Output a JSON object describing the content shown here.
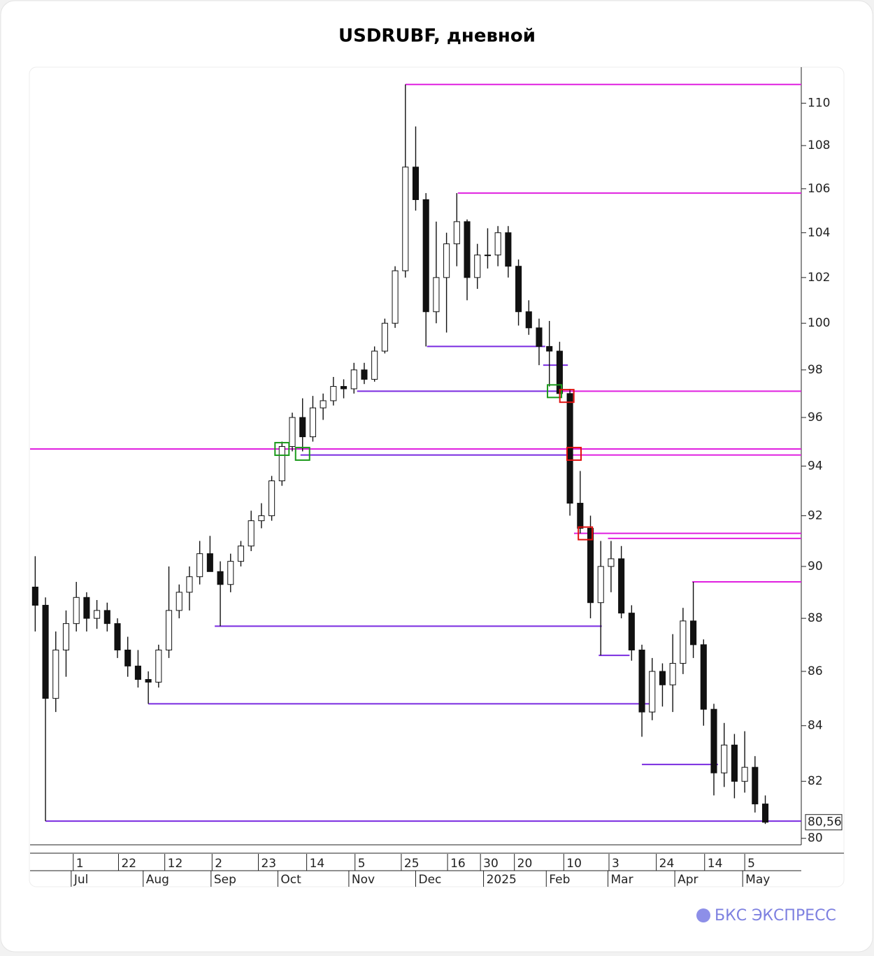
{
  "chart_data": {
    "type": "candlestick",
    "title": "USDRUBF, дневной",
    "log_scale": true,
    "open": [
      89.2,
      88.5,
      85.0,
      86.8,
      87.8,
      88.8,
      88.0,
      88.3,
      87.8,
      86.8,
      86.2,
      85.7,
      85.6,
      86.8,
      88.3,
      89.0,
      89.6,
      90.5,
      89.8,
      89.3,
      90.2,
      90.8,
      91.8,
      92.0,
      93.4,
      94.8,
      96.0,
      95.2,
      96.4,
      96.7,
      97.3,
      97.2,
      98.0,
      97.6,
      98.8,
      100.0,
      102.3,
      107.0,
      105.5,
      100.5,
      102.0,
      103.5,
      104.5,
      102.0,
      103.0,
      103.0,
      104.0,
      102.5,
      100.5,
      99.8,
      99.0,
      98.8,
      97.0,
      92.5,
      91.5,
      88.6,
      90.0,
      90.3,
      88.2,
      86.8,
      84.5,
      86.0,
      85.5,
      86.3,
      87.9,
      87.0,
      84.6,
      82.3,
      83.3,
      82.0,
      82.5,
      81.2
    ],
    "high": [
      90.4,
      88.8,
      87.5,
      88.3,
      89.4,
      89.0,
      88.7,
      88.6,
      88.0,
      87.3,
      86.8,
      86.0,
      87.0,
      90.0,
      89.3,
      90.0,
      91.0,
      91.2,
      90.2,
      90.5,
      91.0,
      92.2,
      92.5,
      93.6,
      95.0,
      96.2,
      96.8,
      96.9,
      97.0,
      97.7,
      97.6,
      98.3,
      98.3,
      99.0,
      100.2,
      102.5,
      110.9,
      108.9,
      105.8,
      104.5,
      104.0,
      105.8,
      104.6,
      103.5,
      104.2,
      104.3,
      104.3,
      102.8,
      101.0,
      100.2,
      100.1,
      99.2,
      97.2,
      93.8,
      92.0,
      91.0,
      91.0,
      90.8,
      88.5,
      87.0,
      86.5,
      86.3,
      87.4,
      88.4,
      89.4,
      87.2,
      84.8,
      84.1,
      83.7,
      83.8,
      82.9,
      81.5
    ],
    "low": [
      87.5,
      80.6,
      84.5,
      85.8,
      87.5,
      87.5,
      87.6,
      87.5,
      86.5,
      85.8,
      85.4,
      84.8,
      85.4,
      86.5,
      88.0,
      88.3,
      89.3,
      89.8,
      87.7,
      89.0,
      90.0,
      90.6,
      91.5,
      91.8,
      93.2,
      94.6,
      94.6,
      95.0,
      95.9,
      96.5,
      96.8,
      97.0,
      97.4,
      97.5,
      98.7,
      99.8,
      102.0,
      105.0,
      99.0,
      100.0,
      99.6,
      102.5,
      101.0,
      101.5,
      102.4,
      102.5,
      102.0,
      99.9,
      99.5,
      98.2,
      97.3,
      96.8,
      92.0,
      91.3,
      88.0,
      86.6,
      89.0,
      88.0,
      86.4,
      83.6,
      84.2,
      84.7,
      84.5,
      85.9,
      86.5,
      84.0,
      81.5,
      81.8,
      81.4,
      81.6,
      80.9,
      80.5
    ],
    "close": [
      88.5,
      85.0,
      86.8,
      87.8,
      88.8,
      88.0,
      88.3,
      87.8,
      86.8,
      86.2,
      85.7,
      85.6,
      86.8,
      88.3,
      89.0,
      89.6,
      90.5,
      89.8,
      89.3,
      90.2,
      90.8,
      91.8,
      92.0,
      93.4,
      94.8,
      96.0,
      95.2,
      96.4,
      96.7,
      97.3,
      97.2,
      98.0,
      97.6,
      98.8,
      100.0,
      102.3,
      107.0,
      105.5,
      100.5,
      102.0,
      103.5,
      104.5,
      102.0,
      103.0,
      103.0,
      104.0,
      102.5,
      100.5,
      99.8,
      99.0,
      98.8,
      97.0,
      92.5,
      91.5,
      88.6,
      90.0,
      90.3,
      88.2,
      86.8,
      84.5,
      86.0,
      85.5,
      86.3,
      87.9,
      87.0,
      84.6,
      82.3,
      83.3,
      82.0,
      82.5,
      81.2,
      80.56
    ],
    "xlim": [
      0,
      75
    ],
    "ylim": [
      79.8,
      111.7
    ],
    "yticks": [
      80,
      82,
      84,
      86,
      88,
      90,
      92,
      94,
      96,
      98,
      100,
      102,
      104,
      106,
      108,
      110
    ],
    "xticks": [
      {
        "value": 4.2,
        "label": "1"
      },
      {
        "value": 8.6,
        "label": "22"
      },
      {
        "value": 13.1,
        "label": "12"
      },
      {
        "value": 17.7,
        "label": "2"
      },
      {
        "value": 22.2,
        "label": "23"
      },
      {
        "value": 26.9,
        "label": "14"
      },
      {
        "value": 31.6,
        "label": "5"
      },
      {
        "value": 36.1,
        "label": "25"
      },
      {
        "value": 40.6,
        "label": "16"
      },
      {
        "value": 43.8,
        "label": "30"
      },
      {
        "value": 47.1,
        "label": "20"
      },
      {
        "value": 51.9,
        "label": "10"
      },
      {
        "value": 56.3,
        "label": "3"
      },
      {
        "value": 60.9,
        "label": "24"
      },
      {
        "value": 65.6,
        "label": "14"
      },
      {
        "value": 69.5,
        "label": "5"
      }
    ],
    "month_ticks": [
      {
        "value": 4.0,
        "label": "Jul"
      },
      {
        "value": 11.0,
        "label": "Aug"
      },
      {
        "value": 17.6,
        "label": "Sep"
      },
      {
        "value": 24.1,
        "label": "Oct"
      },
      {
        "value": 31.0,
        "label": "Nov"
      },
      {
        "value": 37.5,
        "label": "Dec"
      },
      {
        "value": 44.1,
        "label": "2025"
      },
      {
        "value": 50.2,
        "label": "Feb"
      },
      {
        "value": 56.2,
        "label": "Mar"
      },
      {
        "value": 62.7,
        "label": "Apr"
      },
      {
        "value": 69.3,
        "label": "May"
      }
    ],
    "levels": [
      {
        "value": 110.9,
        "from": 36.5,
        "to": 75,
        "color": "#e020e0"
      },
      {
        "value": 105.8,
        "from": 41.6,
        "to": 75,
        "color": "#e020e0"
      },
      {
        "value": 99.0,
        "from": 38.6,
        "to": 50.1,
        "color": "#7a2be0"
      },
      {
        "value": 98.2,
        "from": 49.9,
        "to": 52.3,
        "color": "#7a2be0"
      },
      {
        "value": 97.1,
        "from": 31.8,
        "to": 52.0,
        "color": "#7a2be0"
      },
      {
        "value": 97.1,
        "from": 51.5,
        "to": 75,
        "color": "#e020e0"
      },
      {
        "value": 94.7,
        "from": 0,
        "to": 75,
        "color": "#e020e0"
      },
      {
        "value": 94.45,
        "from": 26.3,
        "to": 52.5,
        "color": "#7a2be0"
      },
      {
        "value": 94.45,
        "from": 52.5,
        "to": 75,
        "color": "#e020e0"
      },
      {
        "value": 91.3,
        "from": 52.9,
        "to": 75,
        "color": "#e020e0"
      },
      {
        "value": 91.1,
        "from": 56.2,
        "to": 75,
        "color": "#e020e0"
      },
      {
        "value": 89.4,
        "from": 64.4,
        "to": 75,
        "color": "#e020e0"
      },
      {
        "value": 87.7,
        "from": 17.96,
        "to": 55.6,
        "color": "#7a2be0"
      },
      {
        "value": 86.6,
        "from": 55.3,
        "to": 58.3,
        "color": "#7a2be0"
      },
      {
        "value": 84.8,
        "from": 11.5,
        "to": 60.2,
        "color": "#7a2be0"
      },
      {
        "value": 82.6,
        "from": 59.5,
        "to": 66.9,
        "color": "#7a2be0"
      },
      {
        "value": 80.6,
        "from": 1.5,
        "to": 75,
        "color": "#7a2be0"
      }
    ],
    "markers": [
      {
        "x": 24.5,
        "value": 94.7,
        "color": "#1a9a1a"
      },
      {
        "x": 26.5,
        "value": 94.5,
        "color": "#1a9a1a"
      },
      {
        "x": 51.0,
        "value": 97.1,
        "color": "#1a9a1a"
      },
      {
        "x": 52.2,
        "value": 96.9,
        "color": "#e01010"
      },
      {
        "x": 52.9,
        "value": 94.5,
        "color": "#e01010"
      },
      {
        "x": 54.0,
        "value": 91.3,
        "color": "#e01010"
      }
    ],
    "last_price": {
      "value": 80.56,
      "value_label": "80,56"
    }
  },
  "brand": "БКС ЭКСПРЕСС"
}
